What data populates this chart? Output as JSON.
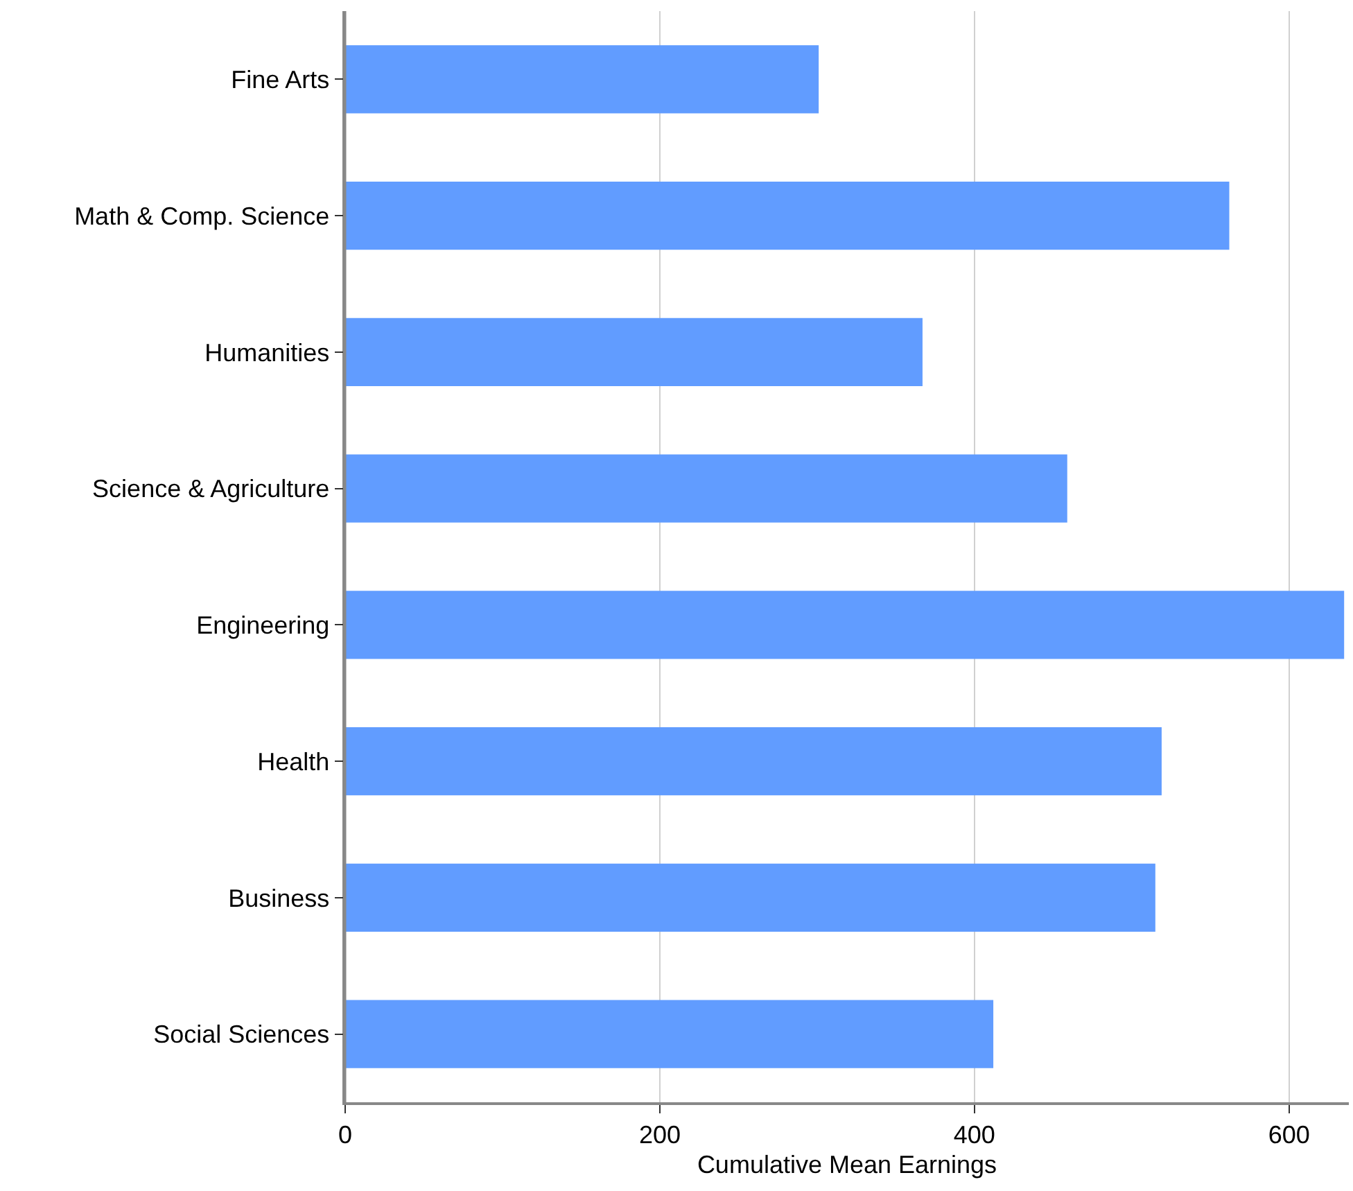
{
  "chart_data": {
    "type": "bar",
    "orientation": "horizontal",
    "xlabel": "Cumulative Mean Earnings",
    "categories": [
      "Fine Arts",
      "Math & Comp. Science",
      "Humanities",
      "Science & Agriculture",
      "Engineering",
      "Health",
      "Business",
      "Social Sciences"
    ],
    "values": [
      301,
      562,
      367,
      459,
      635,
      519,
      515,
      412
    ],
    "color": "#619cff",
    "xlim": [
      0,
      638
    ],
    "xticks": [
      0,
      200,
      400,
      600
    ],
    "grid": "x",
    "legend": false
  }
}
